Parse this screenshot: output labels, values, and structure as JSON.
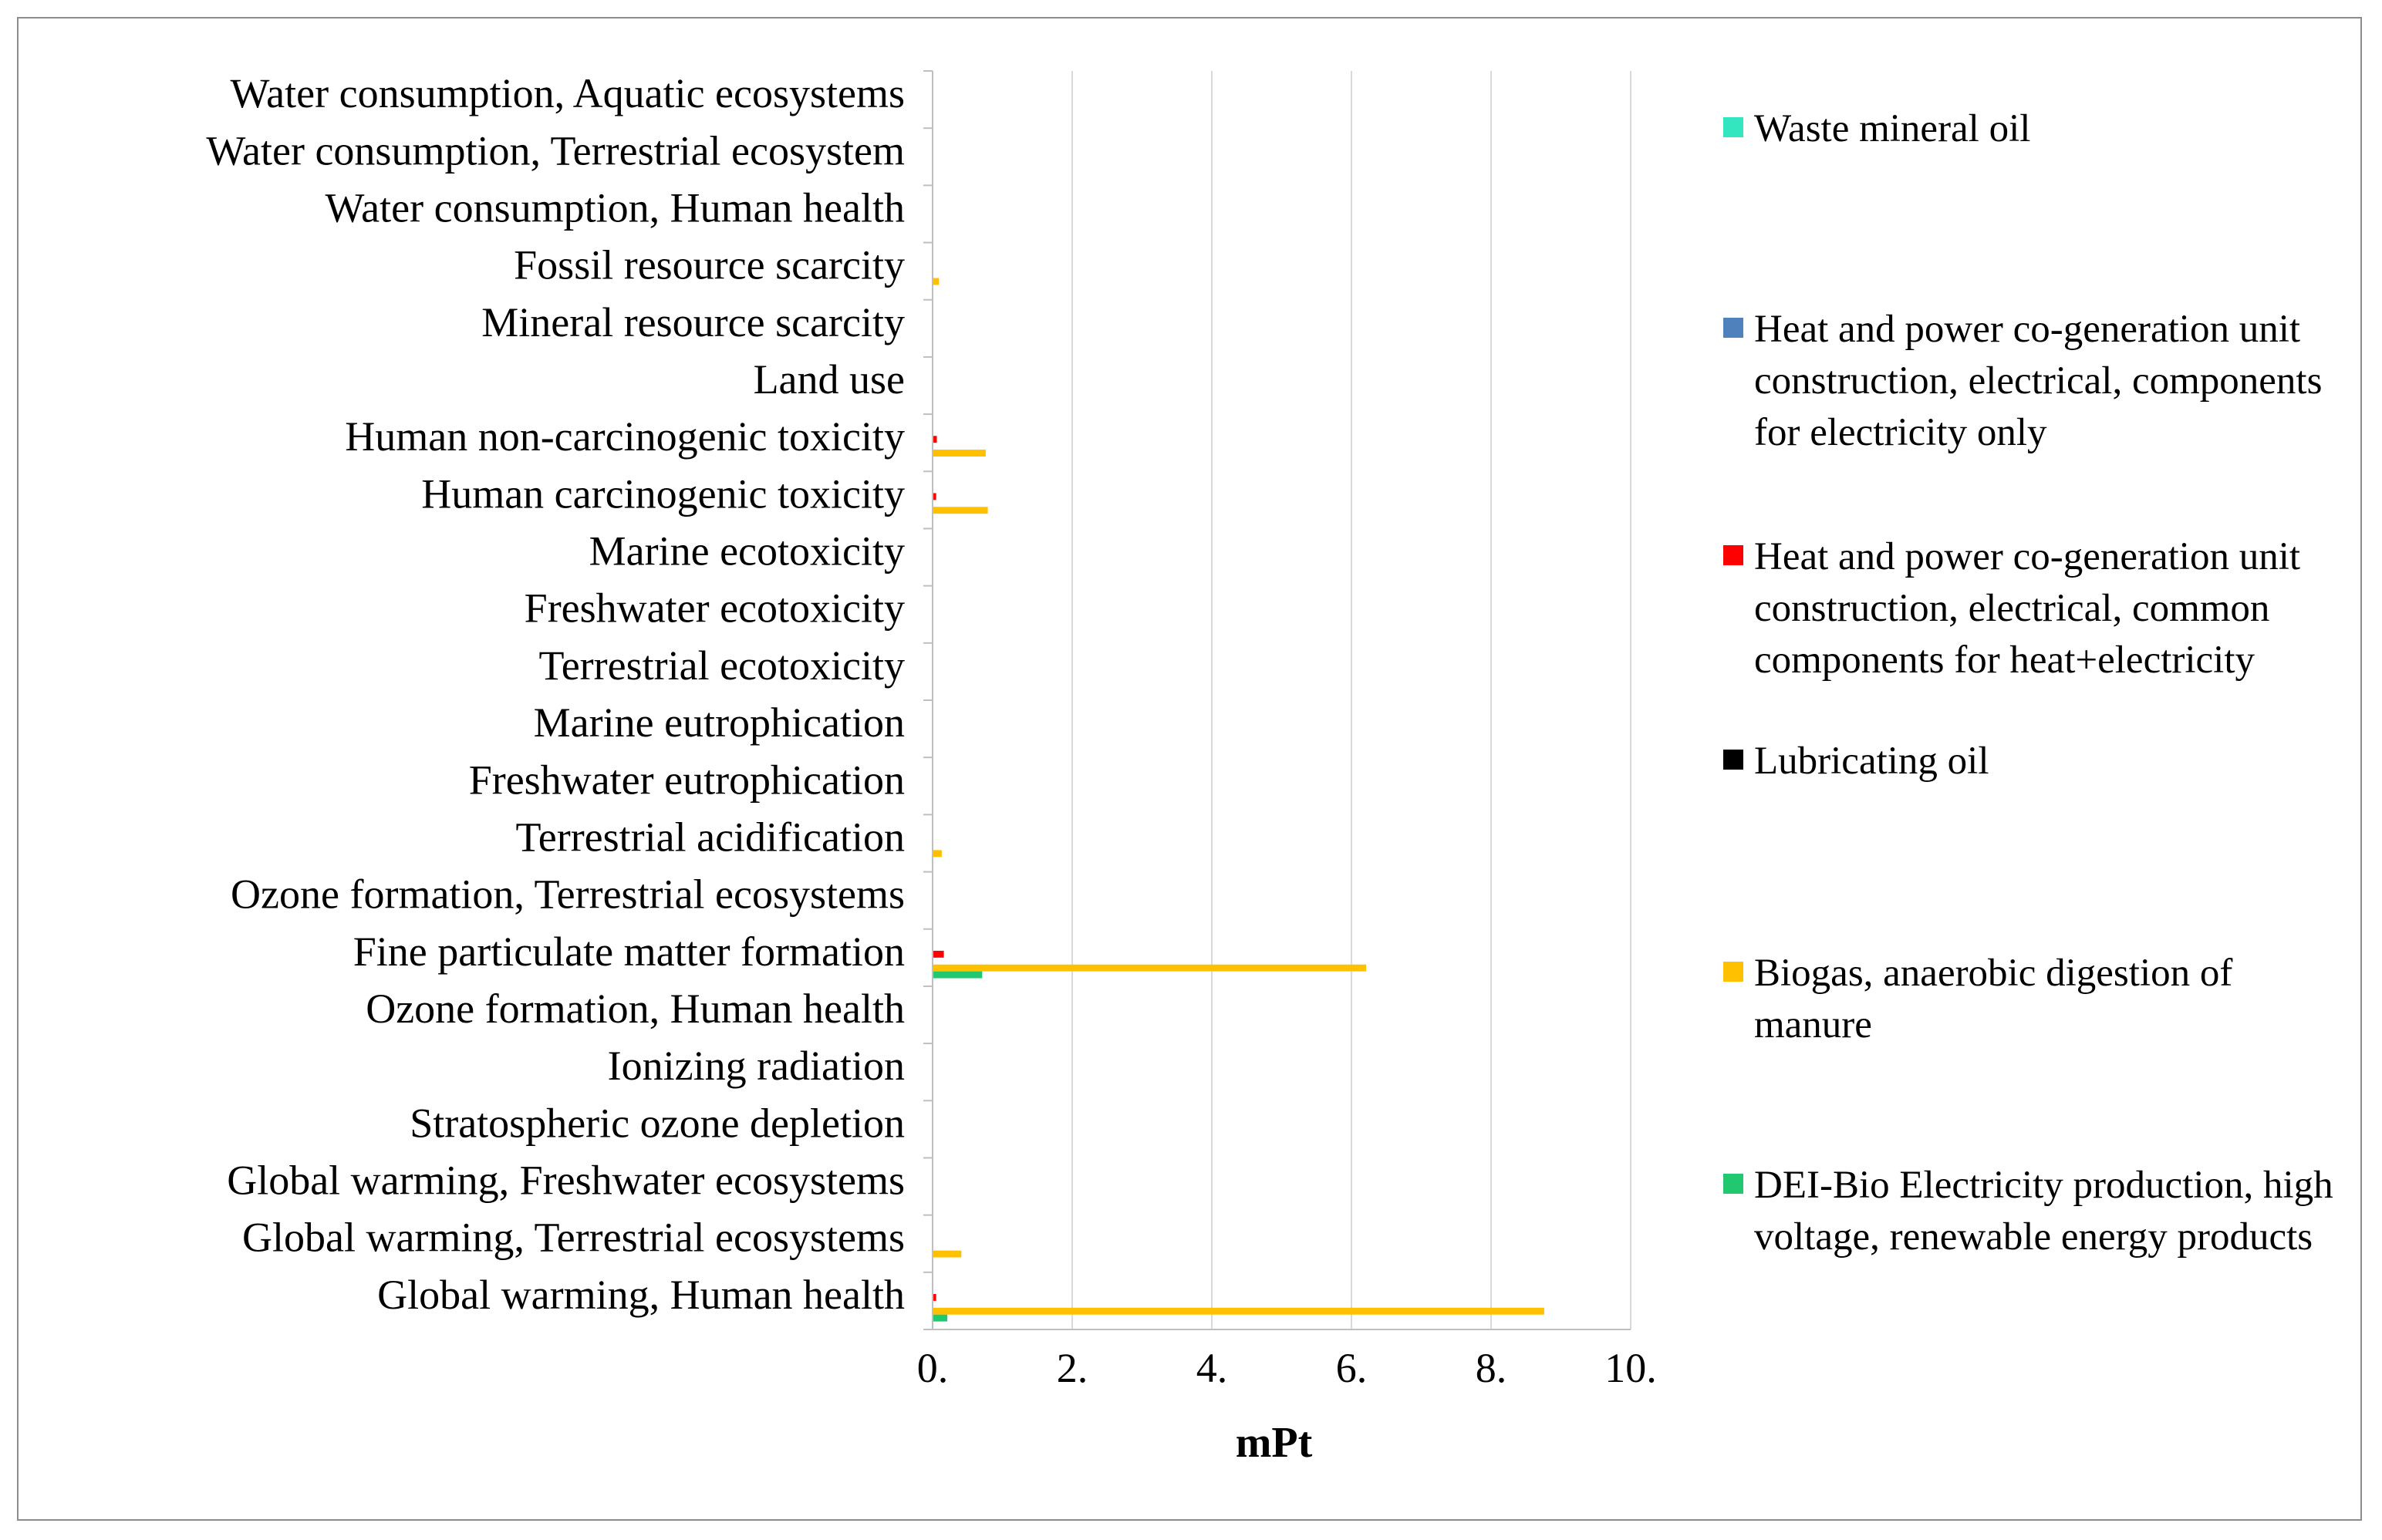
{
  "chart_data": {
    "type": "bar",
    "orientation": "horizontal",
    "categories": [
      "Water consumption, Aquatic ecosystems",
      "Water consumption, Terrestrial ecosystem",
      "Water consumption, Human health",
      "Fossil resource scarcity",
      "Mineral resource scarcity",
      "Land use",
      "Human non-carcinogenic toxicity",
      "Human carcinogenic toxicity",
      "Marine ecotoxicity",
      "Freshwater ecotoxicity",
      "Terrestrial ecotoxicity",
      "Marine eutrophication",
      "Freshwater eutrophication",
      "Terrestrial acidification",
      "Ozone formation, Terrestrial ecosystems",
      "Fine particulate matter formation",
      "Ozone formation, Human health",
      "Ionizing radiation",
      "Stratospheric ozone depletion",
      "Global warming, Freshwater ecosystems",
      "Global warming, Terrestrial ecosystems",
      "Global warming, Human health"
    ],
    "series": [
      {
        "name": "Waste mineral oil",
        "color": "#33e6c0",
        "values": [
          0,
          0,
          0,
          0,
          0,
          0,
          0,
          0,
          0,
          0,
          0,
          0,
          0,
          0,
          0,
          0,
          0,
          0,
          0,
          0,
          0,
          0
        ]
      },
      {
        "name": "Heat and power co-generation unit construction,  electrical, components for electricity only",
        "color": "#4f81bd",
        "values": [
          0,
          0,
          0,
          0,
          0,
          0,
          0,
          0,
          0,
          0,
          0,
          0,
          0,
          0,
          0,
          0,
          0,
          0,
          0,
          0,
          0,
          0
        ]
      },
      {
        "name": "Heat and power co-generation unit construction, electrical, common components for heat+electricity",
        "color": "#ff0000",
        "values": [
          0,
          0,
          0,
          0,
          0,
          0,
          0.05,
          0.04,
          0,
          0,
          0,
          0,
          0,
          0,
          0,
          0.15,
          0,
          0,
          0,
          0,
          0,
          0.04
        ]
      },
      {
        "name": "Lubricating oil",
        "color": "#000000",
        "values": [
          0,
          0,
          0,
          0,
          0,
          0,
          0,
          0,
          0,
          0,
          0,
          0,
          0,
          0,
          0,
          0,
          0,
          0,
          0,
          0,
          0,
          0
        ]
      },
      {
        "name": "Biogas, anaerobic digestion of manure",
        "color": "#ffc000",
        "values": [
          0,
          0,
          0,
          0.08,
          0,
          0,
          0.75,
          0.78,
          0,
          0,
          0,
          0,
          0,
          0.12,
          0,
          6.2,
          0,
          0,
          0,
          0,
          0.4,
          8.75
        ]
      },
      {
        "name": "DEI-Bio Electricity production, high voltage, renewable energy products",
        "color": "#22c870",
        "values": [
          0,
          0,
          0,
          0,
          0,
          0,
          0,
          0,
          0,
          0,
          0,
          0,
          0,
          0,
          0,
          0.7,
          0,
          0,
          0,
          0,
          0,
          0.2
        ]
      }
    ],
    "xlim": [
      0,
      10
    ],
    "xticks": [
      "0.",
      "2.",
      "4.",
      "6.",
      "8.",
      "10."
    ],
    "xlabel": "mPt",
    "ylabel": "",
    "grid": true,
    "legend_position": "right"
  }
}
